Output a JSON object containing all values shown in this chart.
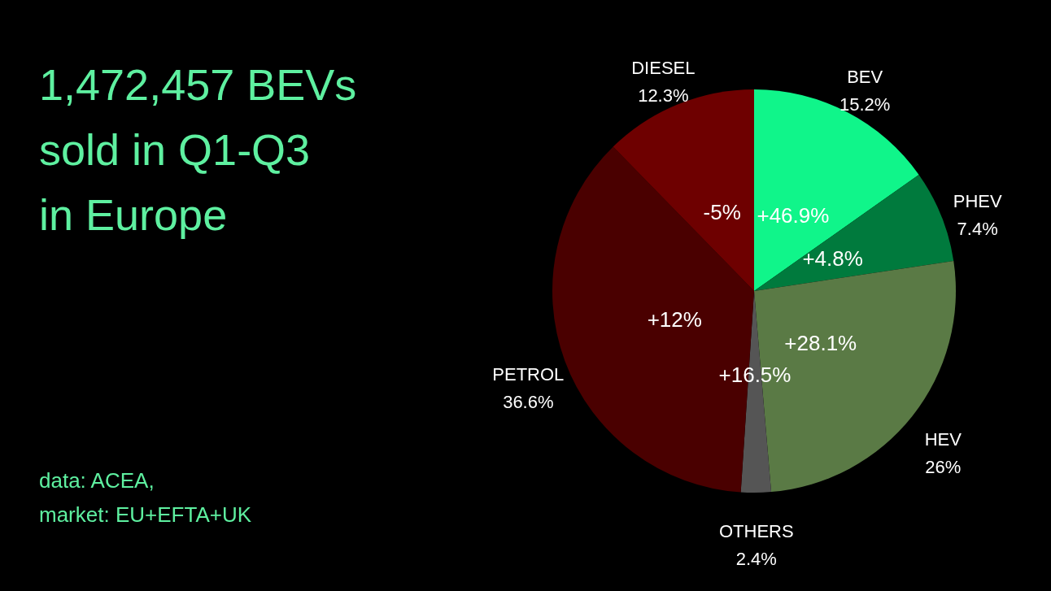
{
  "chart_data": {
    "type": "pie",
    "title": "1,472,457 BEVs sold in Q1-Q3 in Europe",
    "categories": [
      "BEV",
      "PHEV",
      "HEV",
      "OTHERS",
      "PETROL",
      "DIESEL"
    ],
    "values": [
      15.2,
      7.4,
      26,
      2.4,
      36.6,
      12.3
    ],
    "value_labels": [
      "15.2%",
      "7.4%",
      "26%",
      "2.4%",
      "36.6%",
      "12.3%"
    ],
    "colors": [
      "#10f58a",
      "#007a3d",
      "#5a7a45",
      "#555555",
      "#4a0000",
      "#6e0000"
    ],
    "annotations": [
      {
        "text": "+46.9%",
        "x": "BEV"
      },
      {
        "text": "+4.8%",
        "x": "PHEV"
      },
      {
        "text": "+28.1%",
        "x": "HEV"
      },
      {
        "text": "+16.5%",
        "x": "OTHERS"
      },
      {
        "text": "+12%",
        "x": "PETROL"
      },
      {
        "text": "-5%",
        "x": "DIESEL"
      },
      "data: ACEA,",
      "market: EU+EFTA+UK"
    ]
  }
}
